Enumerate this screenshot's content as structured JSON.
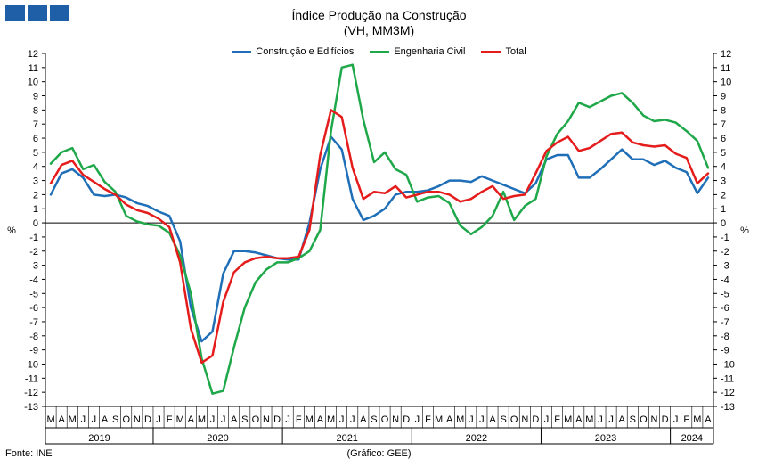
{
  "header": {
    "title": "Índice Produção na Construção",
    "subtitle": "(VH, MM3M)"
  },
  "footer": {
    "source": "Fonte: INE",
    "credit": "(Gráfico: GEE)"
  },
  "chart_data": {
    "type": "line",
    "title": "Índice Produção na Construção",
    "subtitle": "(VH, MM3M)",
    "ylabel_left": "%",
    "ylabel_right": "%",
    "ylim": [
      -13,
      12
    ],
    "yticks": [
      12,
      11,
      10,
      9,
      8,
      7,
      6,
      5,
      4,
      3,
      2,
      1,
      0,
      -1,
      -2,
      -3,
      -4,
      -5,
      -6,
      -7,
      -8,
      -9,
      -10,
      -11,
      -12,
      -13
    ],
    "grid": false,
    "legend_position": "top",
    "x": [
      "M",
      "A",
      "M",
      "J",
      "J",
      "A",
      "S",
      "O",
      "N",
      "D",
      "J",
      "F",
      "M",
      "A",
      "M",
      "J",
      "J",
      "A",
      "S",
      "O",
      "N",
      "D",
      "J",
      "F",
      "M",
      "A",
      "M",
      "J",
      "J",
      "A",
      "S",
      "O",
      "N",
      "D",
      "J",
      "F",
      "M",
      "A",
      "M",
      "J",
      "J",
      "A",
      "S",
      "O",
      "N",
      "D",
      "J",
      "F",
      "M",
      "A",
      "M",
      "J",
      "J",
      "A",
      "S",
      "O",
      "N",
      "D",
      "J",
      "F",
      "M",
      "A"
    ],
    "years": [
      {
        "label": "2019",
        "start": 0,
        "count": 10
      },
      {
        "label": "2020",
        "start": 10,
        "count": 12
      },
      {
        "label": "2021",
        "start": 22,
        "count": 12
      },
      {
        "label": "2022",
        "start": 34,
        "count": 12
      },
      {
        "label": "2023",
        "start": 46,
        "count": 12
      },
      {
        "label": "2024",
        "start": 58,
        "count": 4
      }
    ],
    "series": [
      {
        "name": "Construção e Edifícios",
        "color": "#1f6fb8",
        "values": [
          2.0,
          3.5,
          3.8,
          3.2,
          2.0,
          1.9,
          2.0,
          1.8,
          1.4,
          1.2,
          0.8,
          0.5,
          -1.3,
          -6.0,
          -8.4,
          -7.7,
          -3.6,
          -2.0,
          -2.0,
          -2.1,
          -2.3,
          -2.5,
          -2.6,
          -2.6,
          0.0,
          3.8,
          6.1,
          5.2,
          1.7,
          0.2,
          0.5,
          1.0,
          2.0,
          2.2,
          2.2,
          2.3,
          2.6,
          3.0,
          3.0,
          2.9,
          3.3,
          3.0,
          2.7,
          2.4,
          2.1,
          2.8,
          4.5,
          4.8,
          4.8,
          3.2,
          3.2,
          3.8,
          4.5,
          5.2,
          4.5,
          4.5,
          4.1,
          4.4,
          3.9,
          3.6,
          2.1,
          3.2
        ]
      },
      {
        "name": "Engenharia Civil",
        "color": "#1fa84a",
        "values": [
          4.2,
          5.0,
          5.3,
          3.8,
          4.1,
          2.9,
          2.2,
          0.5,
          0.1,
          -0.1,
          -0.2,
          -0.7,
          -2.3,
          -5.0,
          -9.6,
          -12.1,
          -11.9,
          -8.8,
          -6.0,
          -4.2,
          -3.3,
          -2.8,
          -2.8,
          -2.5,
          -2.0,
          -0.5,
          6.5,
          11.0,
          11.2,
          7.3,
          4.3,
          5.0,
          3.8,
          3.4,
          1.5,
          1.8,
          1.9,
          1.4,
          -0.2,
          -0.8,
          -0.3,
          0.5,
          2.2,
          0.2,
          1.2,
          1.7,
          4.7,
          6.3,
          7.2,
          8.5,
          8.2,
          8.6,
          9.0,
          9.2,
          8.5,
          7.6,
          7.2,
          7.3,
          7.1,
          6.5,
          5.8,
          3.9
        ]
      },
      {
        "name": "Total",
        "color": "#e51c1c",
        "values": [
          2.8,
          4.1,
          4.4,
          3.4,
          2.9,
          2.4,
          2.0,
          1.3,
          0.9,
          0.7,
          0.3,
          -0.3,
          -2.8,
          -7.5,
          -9.9,
          -9.4,
          -5.6,
          -3.5,
          -2.8,
          -2.5,
          -2.4,
          -2.5,
          -2.5,
          -2.4,
          -0.5,
          4.8,
          8.0,
          7.5,
          3.9,
          1.7,
          2.2,
          2.1,
          2.6,
          1.8,
          2.0,
          2.2,
          2.2,
          2.0,
          1.5,
          1.7,
          2.2,
          2.6,
          1.7,
          1.9,
          2.0,
          3.5,
          5.1,
          5.7,
          6.1,
          5.1,
          5.3,
          5.8,
          6.3,
          6.4,
          5.7,
          5.5,
          5.4,
          5.5,
          4.9,
          4.6,
          2.8,
          3.5
        ]
      }
    ]
  }
}
